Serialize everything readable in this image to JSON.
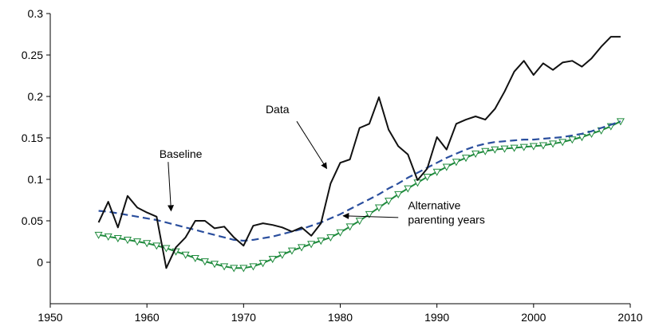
{
  "chart_data": {
    "type": "line",
    "title": "",
    "xlabel": "",
    "ylabel": "",
    "xlim": [
      1950,
      2010
    ],
    "ylim": [
      -0.05,
      0.3
    ],
    "x_ticks": [
      "1950",
      "1960",
      "1970",
      "1980",
      "1990",
      "2000",
      "2010"
    ],
    "y_ticks": [
      "0",
      "0.05",
      "0.1",
      "0.15",
      "0.2",
      "0.25",
      "0.3"
    ],
    "grid": false,
    "colors": {
      "data": "#111111",
      "baseline": "#2b4f9e",
      "alternative": "#1e8a3c"
    },
    "series": [
      {
        "name": "Data",
        "style": "solid",
        "x": [
          1955,
          1956,
          1957,
          1958,
          1959,
          1960,
          1961,
          1962,
          1963,
          1964,
          1965,
          1966,
          1967,
          1968,
          1969,
          1970,
          1971,
          1972,
          1973,
          1974,
          1975,
          1976,
          1977,
          1978,
          1979,
          1980,
          1981,
          1982,
          1983,
          1984,
          1985,
          1986,
          1987,
          1988,
          1989,
          1990,
          1991,
          1992,
          1993,
          1994,
          1995,
          1996,
          1997,
          1998,
          1999,
          2000,
          2001,
          2002,
          2003,
          2004,
          2005,
          2006,
          2007,
          2008,
          2009
        ],
        "values": [
          0.048,
          0.073,
          0.042,
          0.08,
          0.066,
          0.06,
          0.055,
          -0.007,
          0.018,
          0.03,
          0.05,
          0.05,
          0.041,
          0.043,
          0.03,
          0.02,
          0.044,
          0.047,
          0.045,
          0.042,
          0.037,
          0.042,
          0.032,
          0.047,
          0.095,
          0.12,
          0.124,
          0.162,
          0.167,
          0.199,
          0.16,
          0.14,
          0.13,
          0.099,
          0.113,
          0.151,
          0.136,
          0.167,
          0.172,
          0.176,
          0.172,
          0.185,
          0.206,
          0.23,
          0.243,
          0.226,
          0.24,
          0.232,
          0.241,
          0.243,
          0.236,
          0.246,
          0.26,
          0.272,
          0.272
        ]
      },
      {
        "name": "Baseline",
        "style": "dashed",
        "x": [
          1955,
          1956,
          1957,
          1958,
          1959,
          1960,
          1961,
          1962,
          1963,
          1964,
          1965,
          1966,
          1967,
          1968,
          1969,
          1970,
          1971,
          1972,
          1973,
          1974,
          1975,
          1976,
          1977,
          1978,
          1979,
          1980,
          1981,
          1982,
          1983,
          1984,
          1985,
          1986,
          1987,
          1988,
          1989,
          1990,
          1991,
          1992,
          1993,
          1994,
          1995,
          1996,
          1997,
          1998,
          1999,
          2000,
          2001,
          2002,
          2003,
          2004,
          2005,
          2006,
          2007,
          2008,
          2009
        ],
        "values": [
          0.062,
          0.061,
          0.059,
          0.057,
          0.055,
          0.053,
          0.051,
          0.048,
          0.045,
          0.042,
          0.039,
          0.036,
          0.033,
          0.03,
          0.027,
          0.026,
          0.027,
          0.029,
          0.031,
          0.034,
          0.037,
          0.04,
          0.044,
          0.048,
          0.053,
          0.058,
          0.064,
          0.07,
          0.076,
          0.082,
          0.089,
          0.095,
          0.102,
          0.108,
          0.114,
          0.12,
          0.126,
          0.131,
          0.136,
          0.14,
          0.143,
          0.145,
          0.146,
          0.147,
          0.148,
          0.148,
          0.149,
          0.15,
          0.151,
          0.153,
          0.155,
          0.158,
          0.162,
          0.166,
          0.17
        ]
      },
      {
        "name": "Alternative parenting years",
        "style": "solid-triangle-markers",
        "x": [
          1955,
          1956,
          1957,
          1958,
          1959,
          1960,
          1961,
          1962,
          1963,
          1964,
          1965,
          1966,
          1967,
          1968,
          1969,
          1970,
          1971,
          1972,
          1973,
          1974,
          1975,
          1976,
          1977,
          1978,
          1979,
          1980,
          1981,
          1982,
          1983,
          1984,
          1985,
          1986,
          1987,
          1988,
          1989,
          1990,
          1991,
          1992,
          1993,
          1994,
          1995,
          1996,
          1997,
          1998,
          1999,
          2000,
          2001,
          2002,
          2003,
          2004,
          2005,
          2006,
          2007,
          2008,
          2009
        ],
        "values": [
          0.033,
          0.031,
          0.029,
          0.027,
          0.025,
          0.023,
          0.02,
          0.017,
          0.013,
          0.009,
          0.005,
          0.001,
          -0.002,
          -0.005,
          -0.007,
          -0.007,
          -0.005,
          -0.001,
          0.004,
          0.009,
          0.014,
          0.018,
          0.022,
          0.026,
          0.03,
          0.036,
          0.043,
          0.05,
          0.058,
          0.066,
          0.074,
          0.082,
          0.089,
          0.096,
          0.103,
          0.109,
          0.115,
          0.121,
          0.126,
          0.131,
          0.134,
          0.136,
          0.137,
          0.138,
          0.139,
          0.14,
          0.141,
          0.143,
          0.145,
          0.148,
          0.151,
          0.155,
          0.159,
          0.164,
          0.17
        ]
      }
    ],
    "annotations": [
      {
        "text": "Data",
        "arrow_from": [
          1975.5,
          0.17
        ],
        "arrow_to": [
          1978.6,
          0.113
        ]
      },
      {
        "text": "Baseline",
        "arrow_from": [
          1962.2,
          0.121
        ],
        "arrow_to": [
          1962.5,
          0.062
        ]
      },
      {
        "text": "Alternative\nparenting years",
        "arrow_from": [
          1986.0,
          0.054
        ],
        "arrow_to": [
          1980.3,
          0.056
        ]
      }
    ]
  }
}
